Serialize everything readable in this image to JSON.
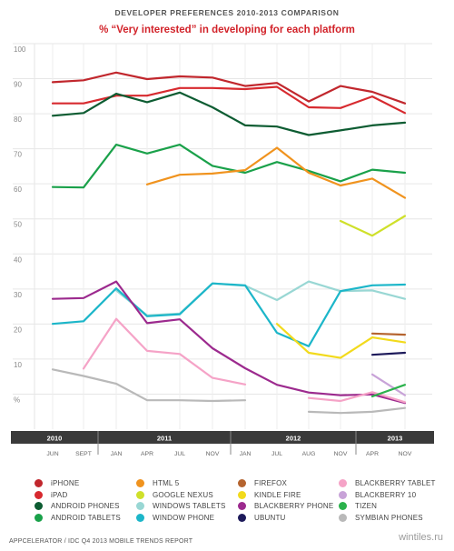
{
  "header": {
    "sup_title": "DEVELOPER PREFERENCES 2010-2013 COMPARISON",
    "title": "% “Very interested” in developing for each platform"
  },
  "footer": {
    "source": "APPCELERATOR / IDC Q4 2013 MOBILE TRENDS REPORT",
    "watermark": "wintiles.ru"
  },
  "chart_data": {
    "type": "line",
    "title": "% “Very interested” in developing for each platform",
    "ylim": [
      0,
      100
    ],
    "yticks": [
      "100",
      "90",
      "80",
      "70",
      "60",
      "50",
      "40",
      "30",
      "20",
      "10",
      "%"
    ],
    "grid": true,
    "years": [
      "2010",
      "2011",
      "2012",
      "2013"
    ],
    "x": [
      "JUN",
      "SEPT",
      "JAN",
      "APR",
      "JUL",
      "NOV",
      "JAN",
      "JUL",
      "AUG",
      "NOV",
      "APR",
      "NOV"
    ],
    "legend_placement": "bottom",
    "series": [
      {
        "name": "iPHONE",
        "color": "#c1272d",
        "values": [
          90,
          90.5,
          92.5,
          90.8,
          91.5,
          91.2,
          89,
          89.8,
          85,
          89,
          87.5,
          84.5
        ]
      },
      {
        "name": "iPAD",
        "color": "#d72a2f",
        "values": [
          84.5,
          84.5,
          86.5,
          86.5,
          88.5,
          88.5,
          88.2,
          88.8,
          83.5,
          83.3,
          86.3,
          82
        ]
      },
      {
        "name": "ANDROID PHONES",
        "color": "#0d5c32",
        "values": [
          81.3,
          82,
          87,
          84.8,
          87.3,
          83.5,
          78.8,
          78.5,
          76.3,
          77.5,
          78.8,
          79.5
        ]
      },
      {
        "name": "ANDROID TABLETS",
        "color": "#1aa14a",
        "values": [
          62.8,
          62.7,
          73.8,
          71.5,
          73.8,
          68.3,
          66.5,
          69.3,
          67,
          64.3,
          67.3,
          66.5
        ]
      },
      {
        "name": "HTML 5",
        "color": "#f0931e",
        "values": [
          null,
          null,
          null,
          63.5,
          66,
          66.3,
          67.2,
          73,
          66.5,
          63.2,
          65,
          60
        ]
      },
      {
        "name": "GOOGLE NEXUS",
        "color": "#cfe02a",
        "values": [
          null,
          null,
          null,
          null,
          null,
          null,
          null,
          null,
          null,
          54,
          50.2,
          55.3
        ]
      },
      {
        "name": "WINDOWS TABLETS",
        "color": "#99d7d4",
        "values": [
          null,
          null,
          36,
          29.5,
          30,
          37.8,
          37.2,
          33.5,
          38.3,
          35.8,
          36,
          33.8
        ]
      },
      {
        "name": "WINDOW PHONE",
        "color": "#1cb6c9",
        "values": [
          27.3,
          28,
          36.5,
          29.3,
          29.8,
          37.8,
          37.3,
          25,
          21.5,
          35.8,
          37.3,
          37.5
        ]
      },
      {
        "name": "FIREFOX",
        "color": "#b5642f",
        "values": [
          null,
          null,
          null,
          null,
          null,
          null,
          null,
          null,
          null,
          null,
          24.8,
          24.5
        ]
      },
      {
        "name": "KINDLE FIRE",
        "color": "#f2da1c",
        "values": [
          null,
          null,
          null,
          null,
          null,
          null,
          null,
          27.3,
          19.8,
          18.5,
          23.8,
          22.5
        ]
      },
      {
        "name": "BLACKBERRY PHONE",
        "color": "#9c2a8e",
        "values": [
          33.8,
          34,
          38.3,
          27.5,
          28.5,
          21,
          15.8,
          11.5,
          9.5,
          8.8,
          9,
          6.8
        ]
      },
      {
        "name": "UBUNTU",
        "color": "#1d1a5a",
        "values": [
          null,
          null,
          null,
          null,
          null,
          null,
          null,
          null,
          null,
          null,
          19.3,
          19.8
        ]
      },
      {
        "name": "BLACKBERRY TABLET",
        "color": "#f5a3c7",
        "values": [
          null,
          15.7,
          28.6,
          20.3,
          19.5,
          13.3,
          11.6,
          null,
          8.1,
          7.3,
          9.6,
          7
        ]
      },
      {
        "name": "BLACKBERRY 10",
        "color": "#c8a3d8",
        "values": [
          null,
          null,
          null,
          null,
          null,
          null,
          null,
          null,
          null,
          null,
          14.2,
          8.8
        ]
      },
      {
        "name": "TIZEN",
        "color": "#2bb24c",
        "values": [
          null,
          null,
          null,
          null,
          null,
          null,
          null,
          null,
          null,
          null,
          8.5,
          11.5
        ]
      },
      {
        "name": "SYMBIAN PHONES",
        "color": "#b9b9b9",
        "values": [
          15.5,
          13.8,
          11.8,
          7.5,
          7.5,
          7.3,
          7.5,
          null,
          4.5,
          4.2,
          4.5,
          5.5
        ]
      }
    ]
  }
}
